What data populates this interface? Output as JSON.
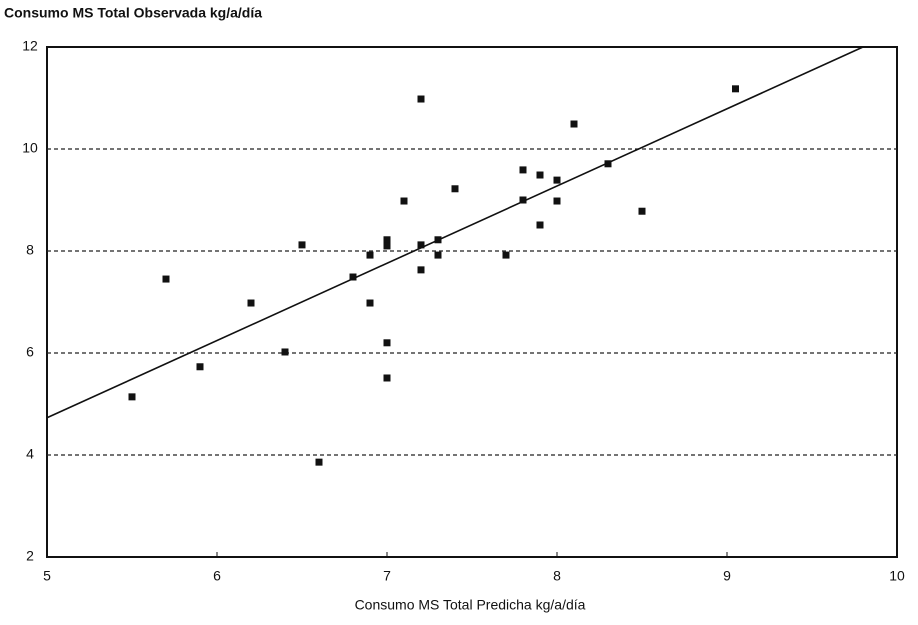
{
  "chart_data": {
    "type": "scatter",
    "title": "Consumo MS Total Observada kg/a/día",
    "x_label": "Consumo MS Total Predicha kg/a/día",
    "xlim": [
      5,
      10
    ],
    "xticks": [
      5,
      6,
      7,
      8,
      9,
      10
    ],
    "ylim": [
      2,
      12
    ],
    "yticks": [
      2,
      4,
      6,
      8,
      10,
      12
    ],
    "grid": true,
    "color": "#111111",
    "x": [
      5.5,
      5.7,
      5.9,
      6.2,
      6.4,
      6.5,
      6.6,
      6.8,
      6.9,
      6.9,
      7.0,
      7.0,
      7.0,
      7.0,
      7.1,
      7.2,
      7.2,
      7.2,
      7.3,
      7.3,
      7.4,
      7.7,
      7.8,
      7.8,
      7.9,
      7.9,
      8.0,
      8.0,
      8.1,
      8.3,
      8.5,
      9.05
    ],
    "values": [
      5.14,
      7.45,
      5.73,
      6.98,
      6.02,
      8.12,
      3.86,
      7.49,
      6.98,
      7.92,
      8.22,
      8.1,
      6.2,
      5.51,
      8.98,
      10.98,
      8.12,
      7.63,
      8.22,
      7.92,
      9.22,
      7.92,
      9.59,
      9.0,
      9.49,
      8.51,
      9.39,
      8.98,
      10.49,
      9.71,
      8.78,
      11.18
    ],
    "fit_line": {
      "x": [
        5,
        9.8
      ],
      "values": [
        4.73,
        12
      ]
    }
  }
}
